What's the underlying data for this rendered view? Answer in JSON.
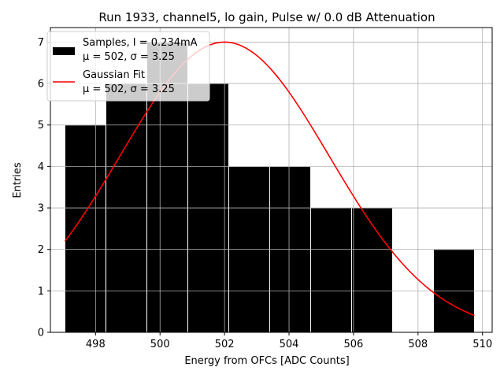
{
  "chart_data": {
    "type": "bar",
    "title": "Run 1933, channel5, lo gain, Pulse w/ 0.0 dB Attenuation",
    "xlabel": "Energy from OFCs [ADC Counts]",
    "ylabel": "Entries",
    "xlim": [
      496.6,
      510.3
    ],
    "ylim": [
      0,
      7.35
    ],
    "xticks": [
      498,
      500,
      502,
      504,
      506,
      508,
      510
    ],
    "yticks": [
      0,
      1,
      2,
      3,
      4,
      5,
      6,
      7
    ],
    "grid": true,
    "legend_position": "top-left",
    "histogram": {
      "name": "Samples",
      "legend_line1": "Samples, I = 0.234mA",
      "legend_line2": "μ = 502, σ = 3.25",
      "color": "#000000",
      "bin_edges": [
        497.05,
        498.32,
        499.59,
        500.86,
        502.13,
        503.4,
        504.67,
        505.94,
        507.21,
        508.48,
        509.75
      ],
      "counts": [
        5,
        6,
        7,
        6,
        4,
        4,
        3,
        3,
        0,
        2
      ]
    },
    "fit": {
      "name": "Gaussian Fit",
      "legend_line1": "Gaussian Fit",
      "legend_line2": "μ = 502, σ = 3.25",
      "color": "#ff0000",
      "amplitude": 7.0,
      "mu": 502.0,
      "sigma": 3.25,
      "x_range": [
        497.05,
        509.75
      ]
    }
  }
}
